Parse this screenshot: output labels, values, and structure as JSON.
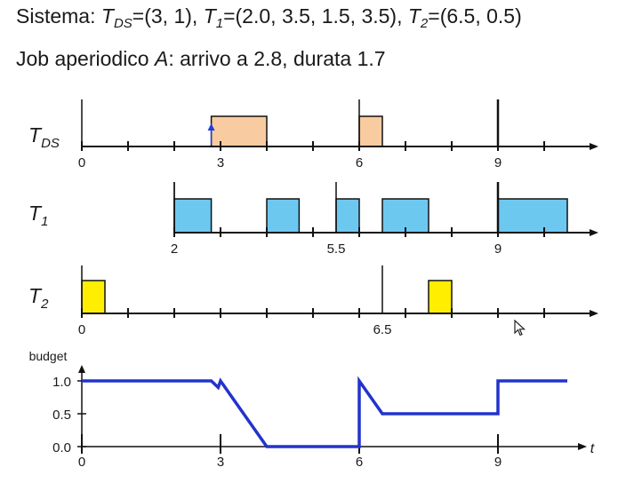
{
  "header": {
    "line1": {
      "prefix": "Sistema: ",
      "tds_sym": "T",
      "tds_sub": "DS",
      "tds_val": "=(3, 1), ",
      "t1_sym": "T",
      "t1_sub": "1",
      "t1_val": "=(2.0, 3.5, 1.5, 3.5), ",
      "t2_sym": "T",
      "t2_sub": "2",
      "t2_val": "=(6.5, 0.5)"
    },
    "line2": {
      "prefix": "Job aperiodico ",
      "job": "A",
      "rest": ": arrivo a 2.8, durata 1.7"
    }
  },
  "rows": [
    {
      "id": "tds",
      "label_sym": "T",
      "label_sub": "DS",
      "axis_start": 0,
      "axis_end": 11,
      "ticks": [
        0,
        1,
        2,
        3,
        4,
        5,
        6,
        7,
        8,
        9,
        10
      ],
      "long_ticks": [
        6,
        9
      ],
      "tick_labels": [
        {
          "x": 0,
          "text": "0"
        },
        {
          "x": 3,
          "text": "3"
        },
        {
          "x": 6,
          "text": "6"
        },
        {
          "x": 9,
          "text": "9"
        }
      ],
      "blocks": [
        {
          "start": 2.8,
          "end": 4.0
        },
        {
          "start": 6.0,
          "end": 6.5
        }
      ],
      "arrivals": [
        2.8
      ],
      "color": "#f9cba1"
    },
    {
      "id": "t1",
      "label_sym": "T",
      "label_sub": "1",
      "axis_start": 2,
      "axis_end": 11,
      "ticks": [
        2,
        3,
        4,
        5,
        6,
        7,
        8,
        9,
        10
      ],
      "long_ticks": [
        2,
        5.5,
        9
      ],
      "tick_labels": [
        {
          "x": 2,
          "text": "2"
        },
        {
          "x": 5.5,
          "text": "5.5"
        },
        {
          "x": 9,
          "text": "9"
        }
      ],
      "blocks": [
        {
          "start": 2.0,
          "end": 2.8
        },
        {
          "start": 4.0,
          "end": 4.7
        },
        {
          "start": 5.5,
          "end": 6.0
        },
        {
          "start": 6.5,
          "end": 7.5
        },
        {
          "start": 9.0,
          "end": 10.5
        }
      ],
      "arrivals": [],
      "color": "#6dc8f0"
    },
    {
      "id": "t2",
      "label_sym": "T",
      "label_sub": "2",
      "axis_start": 0,
      "axis_end": 11,
      "ticks": [
        0,
        1,
        2,
        3,
        4,
        5,
        6,
        7,
        8,
        9,
        10
      ],
      "long_ticks": [
        6.5
      ],
      "tick_labels": [
        {
          "x": 0,
          "text": "0"
        },
        {
          "x": 6.5,
          "text": "6.5"
        }
      ],
      "blocks": [
        {
          "start": 0.0,
          "end": 0.5
        },
        {
          "start": 7.5,
          "end": 8.0
        }
      ],
      "arrivals": [],
      "color": "#ffee00"
    }
  ],
  "budget": {
    "ylabel": "budget",
    "xlabel": "t",
    "y_ticks": [
      {
        "v": 1.0,
        "text": "1.0"
      },
      {
        "v": 0.5,
        "text": "0.5"
      },
      {
        "v": 0.0,
        "text": "0.0"
      }
    ],
    "x_ticks": [
      0,
      3,
      6,
      9
    ],
    "x_tick_labels": [
      {
        "x": 0,
        "text": "0"
      },
      {
        "x": 3,
        "text": "3"
      },
      {
        "x": 6,
        "text": "6"
      },
      {
        "x": 9,
        "text": "9"
      }
    ],
    "points": [
      [
        0,
        1.0
      ],
      [
        2.8,
        1.0
      ],
      [
        2.95,
        0.9
      ],
      [
        3.0,
        1.0
      ],
      [
        4.0,
        0.0
      ],
      [
        6.0,
        0.0
      ],
      [
        6.0,
        1.0
      ],
      [
        6.5,
        0.5
      ],
      [
        9.0,
        0.5
      ],
      [
        9.0,
        1.0
      ],
      [
        10.5,
        1.0
      ]
    ],
    "line_color": "#2233cc"
  },
  "colors": {
    "axis": "#111111",
    "arrival_arrow": "#1e3ce0"
  }
}
